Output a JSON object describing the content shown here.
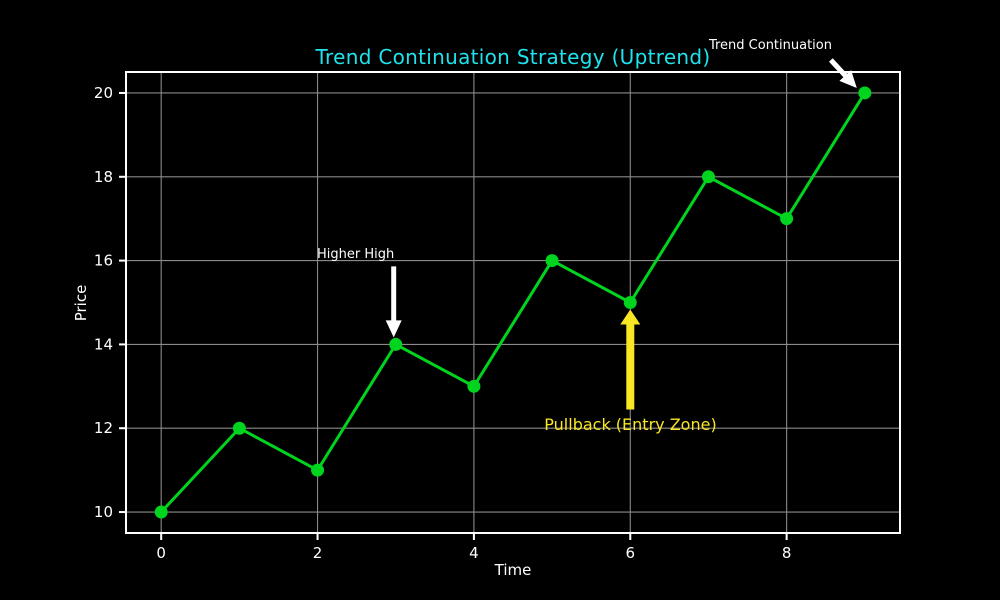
{
  "chart_data": {
    "type": "line",
    "title": "Trend Continuation Strategy (Uptrend)",
    "xlabel": "Time",
    "ylabel": "Price",
    "x": [
      0,
      1,
      2,
      3,
      4,
      5,
      6,
      7,
      8,
      9
    ],
    "y": [
      10,
      12,
      11,
      14,
      13,
      16,
      15,
      18,
      17,
      20
    ],
    "xlim": [
      -0.45,
      9.45
    ],
    "ylim": [
      9.5,
      20.5
    ],
    "xticks": [
      0,
      2,
      4,
      6,
      8
    ],
    "yticks": [
      10,
      12,
      14,
      16,
      18,
      20
    ],
    "grid": true,
    "legend": false,
    "marker": "circle",
    "colors": {
      "background": "#000000",
      "axis": "#ffffff",
      "grid": "#8a8a8a",
      "line": "#00d41e",
      "title": "#1ee3ee"
    },
    "annotations": [
      {
        "text": "Higher High",
        "color": "#ffffff",
        "target": [
          3,
          14
        ],
        "arrow": {
          "tail_offset": [
            -2,
            -78
          ],
          "tip_offset": [
            -2,
            -7
          ],
          "shaft": 5,
          "head_w": 16,
          "head_len": 17
        }
      },
      {
        "text": "Pullback (Entry Zone)",
        "color": "#f9e723",
        "target": [
          6,
          15
        ],
        "arrow": {
          "tail_offset": [
            0,
            107
          ],
          "tip_offset": [
            0,
            7
          ],
          "shaft": 8,
          "head_w": 20,
          "head_len": 15
        }
      },
      {
        "text": "Trend Continuation",
        "color": "#ffffff",
        "target": [
          9,
          20
        ],
        "arrow": {
          "tail_offset": [
            -34,
            -33
          ],
          "tip_offset": [
            -8,
            -5
          ],
          "shaft": 5,
          "head_w": 16,
          "head_len": 17
        }
      }
    ]
  }
}
